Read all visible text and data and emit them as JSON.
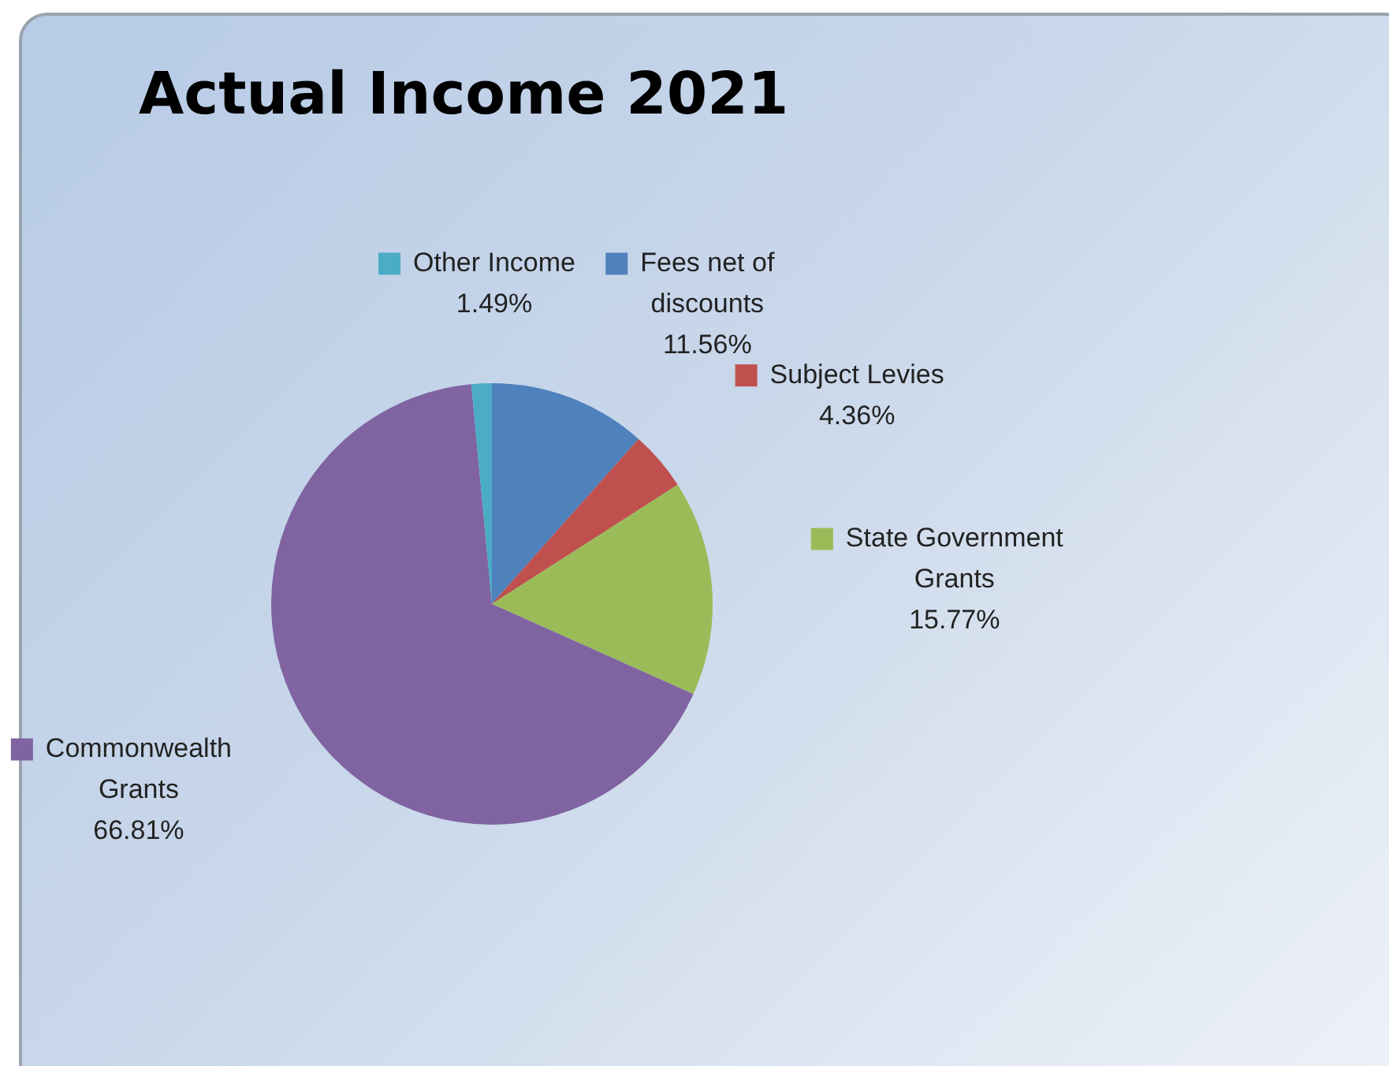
{
  "chart_data": {
    "type": "pie",
    "title": "Actual Income 2021",
    "categories": [
      "Fees net of discounts",
      "Subject Levies",
      "State Government Grants",
      "Commonwealth Grants",
      "Other Income"
    ],
    "values": [
      11.56,
      4.36,
      15.77,
      66.81,
      1.49
    ],
    "colors": [
      "#4f81bd",
      "#c0504d",
      "#9bbb59",
      "#8064a2",
      "#4bacc6"
    ],
    "value_labels": [
      "11.56%",
      "4.36%",
      "15.77%",
      "66.81%",
      "1.49%"
    ],
    "legend": "right"
  }
}
